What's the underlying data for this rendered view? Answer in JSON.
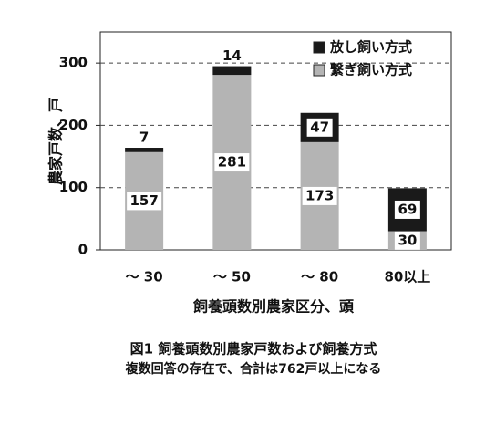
{
  "chart_data": {
    "type": "stacked_bar",
    "y_label": "農家戸数、戸",
    "x_label": "飼養頭数別農家区分、頭",
    "caption": "図1 飼養頭数別農家戸数および飼養方式",
    "note": "複数回答の存在で、合計は762戸以上になる",
    "categories": [
      "～ 30",
      "～ 50",
      "～ 80",
      "80以上"
    ],
    "series": [
      {
        "name": "繋ぎ飼い方式",
        "color": "#b4b4b4",
        "values": [
          157,
          281,
          173,
          30
        ]
      },
      {
        "name": "放し飼い方式",
        "color": "#1a1a1a",
        "values": [
          7,
          14,
          47,
          69
        ]
      }
    ],
    "ylim": [
      0,
      350
    ],
    "yticks": [
      0,
      100,
      200,
      300
    ],
    "grid": true,
    "legend": "top-right"
  }
}
